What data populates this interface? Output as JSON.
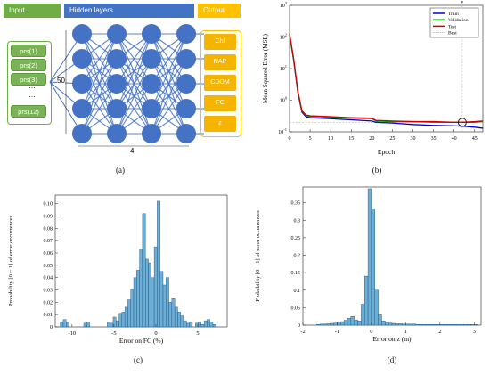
{
  "panel_a": {
    "headers": {
      "input": "Input",
      "hidden": "Hidden layers",
      "output": "Output"
    },
    "inputs": [
      "ρrs(1)",
      "ρrs(2)",
      "ρrs(3)",
      "…",
      "…",
      "ρrs(12)"
    ],
    "outputs": [
      "Chl",
      "NAP",
      "CDOM",
      "FC",
      "z"
    ],
    "neurons_label": "50",
    "layers_label": "4",
    "caption": "(a)",
    "colors": {
      "input": "#70ad47",
      "hidden": "#4472c4",
      "output": "#ffc000"
    }
  },
  "caption_b": "(b)",
  "caption_c": "(c)",
  "caption_d": "(d)",
  "chart_data": [
    {
      "type": "line",
      "xlabel": "Epoch",
      "ylabel": "Mean Squared Error (MSE)",
      "x_ticks": [
        0,
        5,
        10,
        15,
        20,
        25,
        30,
        35,
        40,
        45
      ],
      "xlim": [
        0,
        47
      ],
      "y_scale": "log",
      "y_ticks": [
        "10^-1",
        "10^0",
        "10^1",
        "10^2",
        "10^3"
      ],
      "ylim": [
        0.1,
        1000
      ],
      "legend": {
        "placement": "top-right",
        "entries": [
          "Train",
          "Validation",
          "Test",
          "Best"
        ]
      },
      "series": [
        {
          "name": "Train",
          "color": "#0000dd",
          "x": [
            0,
            1,
            2,
            3,
            4,
            5,
            10,
            15,
            20,
            21,
            25,
            30,
            35,
            40,
            42,
            45,
            47
          ],
          "y": [
            120,
            18,
            1.8,
            0.42,
            0.3,
            0.28,
            0.26,
            0.24,
            0.22,
            0.2,
            0.19,
            0.17,
            0.16,
            0.155,
            0.15,
            0.14,
            0.13
          ]
        },
        {
          "name": "Validation",
          "color": "#00aa00",
          "x": [
            0,
            1,
            2,
            3,
            4,
            5,
            10,
            15,
            20,
            21,
            25,
            30,
            35,
            40,
            42,
            45,
            47
          ],
          "y": [
            125,
            19,
            1.9,
            0.45,
            0.33,
            0.31,
            0.29,
            0.27,
            0.26,
            0.22,
            0.21,
            0.21,
            0.2,
            0.2,
            0.2,
            0.2,
            0.21
          ]
        },
        {
          "name": "Test",
          "color": "#cc0000",
          "x": [
            0,
            1,
            2,
            3,
            4,
            5,
            10,
            15,
            20,
            21,
            25,
            30,
            35,
            40,
            42,
            45,
            47
          ],
          "y": [
            130,
            20,
            2.0,
            0.47,
            0.34,
            0.32,
            0.3,
            0.28,
            0.27,
            0.23,
            0.22,
            0.21,
            0.21,
            0.2,
            0.2,
            0.21,
            0.22
          ]
        }
      ],
      "best": {
        "epoch": 42,
        "value": 0.2
      },
      "top_label": "*"
    },
    {
      "type": "bar",
      "xlabel": "Error on FC (%)",
      "ylabel": "Probability [0 − 1] of error occurrences",
      "x_ticks": [
        -10,
        -5,
        0,
        5
      ],
      "y_ticks": [
        0,
        0.01,
        0.02,
        0.03,
        0.04,
        0.05,
        0.06,
        0.07,
        0.08,
        0.09,
        0.1
      ],
      "xlim": [
        -12,
        8.5
      ],
      "ylim": [
        0,
        0.107
      ],
      "bin_width": 0.35,
      "bins_left": [
        -11.4,
        -11.05,
        -10.7,
        -10.35,
        -10.0,
        -9.65,
        -9.3,
        -8.95,
        -8.6,
        -8.25,
        -7.9,
        -7.55,
        -7.2,
        -6.85,
        -6.5,
        -6.15,
        -5.8,
        -5.45,
        -5.1,
        -4.75,
        -4.4,
        -4.05,
        -3.7,
        -3.35,
        -3.0,
        -2.65,
        -2.3,
        -1.95,
        -1.6,
        -1.25,
        -0.9,
        -0.55,
        -0.2,
        0.15,
        0.5,
        0.85,
        1.2,
        1.55,
        1.9,
        2.25,
        2.6,
        2.95,
        3.3,
        3.65,
        4.0,
        4.35,
        4.7,
        5.05,
        5.4,
        5.75,
        6.1,
        6.45,
        6.8
      ],
      "values": [
        0.004,
        0.006,
        0.004,
        0,
        0,
        0,
        0,
        0,
        0.003,
        0.004,
        0,
        0,
        0,
        0,
        0,
        0,
        0.004,
        0.003,
        0.008,
        0.005,
        0.011,
        0.012,
        0.016,
        0.022,
        0.03,
        0.04,
        0.046,
        0.063,
        0.092,
        0.055,
        0.052,
        0.04,
        0.065,
        0.102,
        0.045,
        0.034,
        0.04,
        0.02,
        0.023,
        0.016,
        0.012,
        0.009,
        0.005,
        0.003,
        0.004,
        0,
        0.003,
        0.004,
        0.002,
        0.005,
        0.006,
        0.004,
        0.002
      ],
      "color": "#6baed6"
    },
    {
      "type": "bar",
      "xlabel": "Error on z (m)",
      "ylabel": "Probability [0 − 1] of error occurrences",
      "x_ticks": [
        -2,
        -1,
        0,
        1,
        2,
        3
      ],
      "y_ticks": [
        0,
        0.05,
        0.1,
        0.15,
        0.2,
        0.25,
        0.3,
        0.35
      ],
      "xlim": [
        -2,
        3.2
      ],
      "ylim": [
        0,
        0.395
      ],
      "bin_width": 0.1,
      "bins_left": [
        -1.6,
        -1.5,
        -1.4,
        -1.3,
        -1.2,
        -1.1,
        -1.0,
        -0.9,
        -0.8,
        -0.7,
        -0.6,
        -0.5,
        -0.4,
        -0.3,
        -0.2,
        -0.1,
        0.0,
        0.1,
        0.2,
        0.3,
        0.4,
        0.5,
        0.6,
        0.7,
        0.8,
        0.9,
        1.0,
        1.1,
        1.2,
        1.3,
        1.4,
        1.5,
        1.6,
        1.7,
        1.8,
        1.9,
        2.0,
        2.1,
        2.2,
        2.3,
        2.4,
        2.5,
        2.6,
        2.7,
        2.8,
        2.9,
        3.0
      ],
      "values": [
        0.002,
        0.003,
        0.003,
        0.004,
        0.005,
        0.006,
        0.008,
        0.01,
        0.014,
        0.02,
        0.025,
        0.015,
        0.012,
        0.06,
        0.14,
        0.39,
        0.33,
        0.1,
        0.03,
        0.012,
        0.008,
        0.006,
        0.005,
        0.004,
        0.004,
        0.003,
        0.003,
        0.003,
        0.003,
        0.002,
        0.002,
        0.002,
        0.002,
        0.002,
        0.002,
        0.002,
        0.002,
        0.002,
        0.002,
        0.002,
        0.002,
        0.002,
        0.002,
        0.002,
        0.002,
        0.002,
        0.002
      ],
      "color": "#6baed6"
    }
  ]
}
